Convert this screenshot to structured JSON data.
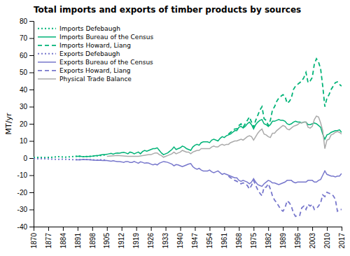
{
  "chart_data": {
    "type": "line",
    "title": "Total imports and exports of timber products by sources",
    "ylabel": "MT/yr",
    "xlim": [
      1870,
      2017
    ],
    "ylim": [
      -40,
      80
    ],
    "yticks": [
      -40,
      -30,
      -20,
      -10,
      0,
      10,
      20,
      30,
      40,
      50,
      60,
      70,
      80
    ],
    "xticks": [
      1870,
      1877,
      1884,
      1891,
      1898,
      1905,
      1912,
      1919,
      1926,
      1933,
      1940,
      1947,
      1954,
      1961,
      1968,
      1975,
      1982,
      1989,
      1996,
      2003,
      2010,
      2017
    ],
    "grid": false,
    "legend": "upper left",
    "series": [
      {
        "name": "Imports Defebaugh",
        "color": "#00b377",
        "line_style": "dotted",
        "x": [
          1870,
          1871,
          1872,
          1873,
          1874,
          1875,
          1876,
          1877,
          1878,
          1879,
          1880,
          1881,
          1882,
          1883,
          1884,
          1885,
          1886,
          1887,
          1888,
          1889,
          1890,
          1891,
          1892,
          1893,
          1894,
          1895,
          1896,
          1897,
          1898,
          1899,
          1900,
          1901,
          1902,
          1903,
          1904,
          1905
        ],
        "values": [
          0.3,
          0.35,
          0.4,
          0.4,
          0.35,
          0.35,
          0.3,
          0.4,
          0.4,
          0.5,
          0.6,
          0.7,
          0.8,
          0.7,
          0.6,
          0.55,
          0.6,
          0.7,
          0.8,
          0.9,
          1.0,
          1.0,
          1.1,
          0.9,
          0.8,
          0.9,
          0.9,
          1.0,
          1.1,
          1.2,
          1.3,
          1.4,
          1.5,
          1.7,
          1.8,
          2.0
        ]
      },
      {
        "name": "Imports Bureau of the Census",
        "color": "#00b377",
        "line_style": "solid",
        "x": [
          1890,
          1891,
          1892,
          1893,
          1894,
          1895,
          1896,
          1897,
          1898,
          1899,
          1900,
          1901,
          1902,
          1903,
          1904,
          1905,
          1906,
          1907,
          1908,
          1909,
          1910,
          1911,
          1912,
          1913,
          1914,
          1915,
          1916,
          1917,
          1918,
          1919,
          1920,
          1921,
          1922,
          1923,
          1924,
          1925,
          1926,
          1927,
          1928,
          1929,
          1930,
          1931,
          1932,
          1933,
          1934,
          1935,
          1936,
          1937,
          1938,
          1939,
          1940,
          1941,
          1942,
          1943,
          1944,
          1945,
          1946,
          1947,
          1948,
          1949,
          1950,
          1951,
          1952,
          1953,
          1954,
          1955,
          1956,
          1957,
          1958,
          1959,
          1960,
          1961,
          1962,
          1963,
          1964,
          1965,
          1966,
          1967,
          1968,
          1969,
          1970,
          1971,
          1972,
          1973,
          1974,
          1975,
          1976,
          1977,
          1978,
          1979,
          1980,
          1981,
          1982,
          1983,
          1984,
          1985,
          1986,
          1987,
          1988,
          1989,
          1990,
          1991,
          1992,
          1993,
          1994,
          1995,
          1996,
          1997,
          1998,
          1999,
          2000,
          2001,
          2002,
          2003,
          2004,
          2005,
          2006,
          2007,
          2008,
          2009,
          2010,
          2011,
          2012,
          2013,
          2014,
          2015,
          2016,
          2017
        ],
        "values": [
          1.0,
          1.0,
          1.1,
          0.9,
          0.8,
          0.9,
          0.9,
          1.0,
          1.1,
          1.3,
          1.4,
          1.5,
          1.8,
          2.0,
          2.0,
          2.2,
          2.5,
          2.7,
          2.3,
          2.8,
          3.0,
          2.9,
          3.2,
          3.4,
          3.0,
          2.5,
          3.5,
          3.2,
          2.5,
          3.0,
          3.5,
          2.5,
          3.8,
          4.5,
          4.0,
          4.5,
          5.0,
          5.5,
          5.5,
          6.0,
          4.5,
          3.0,
          2.0,
          2.5,
          3.0,
          4.0,
          5.0,
          6.5,
          5.0,
          5.5,
          6.0,
          7.0,
          6.5,
          5.5,
          5.0,
          4.5,
          6.5,
          7.5,
          8.0,
          7.5,
          9.0,
          9.5,
          9.5,
          9.5,
          9.0,
          10.5,
          11.0,
          10.5,
          10.0,
          11.5,
          12.5,
          12.0,
          13.0,
          13.5,
          14.0,
          15.0,
          16.0,
          16.0,
          18.0,
          18.5,
          17.5,
          18.5,
          20.0,
          21.0,
          19.5,
          17.0,
          19.5,
          21.0,
          22.0,
          22.5,
          20.0,
          19.5,
          18.5,
          19.5,
          21.5,
          21.5,
          22.0,
          22.5,
          22.0,
          22.0,
          21.5,
          20.0,
          19.5,
          20.0,
          21.0,
          21.5,
          21.0,
          21.0,
          20.5,
          21.0,
          21.0,
          19.5,
          19.5,
          20.0,
          20.5,
          20.0,
          19.0,
          18.0,
          14.0,
          11.0,
          13.5,
          14.0,
          15.0,
          15.5,
          16.0,
          16.0,
          16.5,
          15.0
        ]
      },
      {
        "name": "Imports Howard, Liang",
        "color": "#00b377",
        "line_style": "dashed",
        "x": [
          1963,
          1964,
          1965,
          1966,
          1967,
          1968,
          1969,
          1970,
          1971,
          1972,
          1973,
          1974,
          1975,
          1976,
          1977,
          1978,
          1979,
          1980,
          1981,
          1982,
          1983,
          1984,
          1985,
          1986,
          1987,
          1988,
          1989,
          1990,
          1991,
          1992,
          1993,
          1994,
          1995,
          1996,
          1997,
          1998,
          1999,
          2000,
          2001,
          2002,
          2003,
          2004,
          2005,
          2006,
          2007,
          2008,
          2009,
          2010,
          2011,
          2012,
          2013,
          2014,
          2015,
          2016,
          2017
        ],
        "values": [
          14.0,
          15.0,
          16.0,
          17.0,
          17.0,
          19.0,
          20.0,
          18.0,
          20.0,
          22.0,
          24.0,
          21.0,
          18.0,
          22.0,
          25.0,
          28.0,
          30.0,
          23.0,
          22.0,
          19.0,
          22.0,
          28.0,
          30.0,
          33.0,
          35.0,
          36.0,
          37.0,
          36.0,
          32.0,
          33.0,
          35.0,
          40.0,
          42.0,
          43.0,
          44.0,
          45.0,
          47.0,
          50.0,
          44.0,
          45.0,
          47.0,
          55.0,
          58.0,
          56.0,
          52.0,
          42.0,
          30.0,
          35.0,
          37.0,
          40.0,
          42.0,
          44.0,
          44.5,
          43.0,
          42.0
        ]
      },
      {
        "name": "Exports Defebaugh",
        "color": "#7777cc",
        "line_style": "dotted",
        "x": [
          1870,
          1871,
          1872,
          1873,
          1874,
          1875,
          1876,
          1877,
          1878,
          1879,
          1880,
          1881,
          1882,
          1883,
          1884,
          1885,
          1886,
          1887,
          1888,
          1889,
          1890,
          1891,
          1892,
          1893,
          1894,
          1895,
          1896,
          1897,
          1898,
          1899,
          1900,
          1901,
          1902,
          1903,
          1904,
          1905
        ],
        "values": [
          -0.3,
          -0.35,
          -0.4,
          -0.4,
          -0.35,
          -0.4,
          -0.45,
          -0.5,
          -0.55,
          -0.6,
          -0.7,
          -0.7,
          -0.75,
          -0.7,
          -0.65,
          -0.7,
          -0.75,
          -0.8,
          -0.85,
          -0.9,
          -0.9,
          -0.95,
          -0.9,
          -0.85,
          -0.8,
          -0.85,
          -0.9,
          -0.95,
          -1.0,
          -1.1,
          -1.2,
          -1.1,
          -1.0,
          -1.1,
          -1.15,
          -1.2
        ]
      },
      {
        "name": "Exports Bureau of the Census",
        "color": "#7777cc",
        "line_style": "solid",
        "x": [
          1890,
          1891,
          1892,
          1893,
          1894,
          1895,
          1896,
          1897,
          1898,
          1899,
          1900,
          1901,
          1902,
          1903,
          1904,
          1905,
          1906,
          1907,
          1908,
          1909,
          1910,
          1911,
          1912,
          1913,
          1914,
          1915,
          1916,
          1917,
          1918,
          1919,
          1920,
          1921,
          1922,
          1923,
          1924,
          1925,
          1926,
          1927,
          1928,
          1929,
          1930,
          1931,
          1932,
          1933,
          1934,
          1935,
          1936,
          1937,
          1938,
          1939,
          1940,
          1941,
          1942,
          1943,
          1944,
          1945,
          1946,
          1947,
          1948,
          1949,
          1950,
          1951,
          1952,
          1953,
          1954,
          1955,
          1956,
          1957,
          1958,
          1959,
          1960,
          1961,
          1962,
          1963,
          1964,
          1965,
          1966,
          1967,
          1968,
          1969,
          1970,
          1971,
          1972,
          1973,
          1974,
          1975,
          1976,
          1977,
          1978,
          1979,
          1980,
          1981,
          1982,
          1983,
          1984,
          1985,
          1986,
          1987,
          1988,
          1989,
          1990,
          1991,
          1992,
          1993,
          1994,
          1995,
          1996,
          1997,
          1998,
          1999,
          2000,
          2001,
          2002,
          2003,
          2004,
          2005,
          2006,
          2007,
          2008,
          2009,
          2010,
          2011,
          2012,
          2013,
          2014,
          2015,
          2016,
          2017
        ],
        "values": [
          -1.0,
          -1.0,
          -1.0,
          -0.9,
          -0.8,
          -0.9,
          -0.9,
          -1.0,
          -1.1,
          -1.2,
          -1.3,
          -1.2,
          -1.3,
          -1.4,
          -1.3,
          -1.4,
          -1.6,
          -1.8,
          -1.5,
          -1.8,
          -2.0,
          -2.0,
          -2.2,
          -2.5,
          -2.0,
          -2.0,
          -2.5,
          -2.5,
          -2.0,
          -2.5,
          -3.0,
          -2.2,
          -2.5,
          -3.0,
          -2.8,
          -3.0,
          -3.5,
          -4.0,
          -3.5,
          -4.0,
          -3.0,
          -2.5,
          -2.0,
          -2.2,
          -2.5,
          -3.0,
          -3.5,
          -4.5,
          -3.8,
          -4.0,
          -4.5,
          -5.0,
          -4.5,
          -4.0,
          -3.5,
          -3.2,
          -5.0,
          -6.0,
          -6.5,
          -6.0,
          -7.0,
          -7.5,
          -7.5,
          -7.5,
          -7.0,
          -8.0,
          -8.5,
          -8.0,
          -7.5,
          -8.5,
          -9.5,
          -9.0,
          -9.5,
          -10.0,
          -10.5,
          -11.0,
          -11.5,
          -11.5,
          -13.0,
          -13.5,
          -13.0,
          -13.5,
          -14.0,
          -15.0,
          -14.0,
          -12.0,
          -14.0,
          -15.5,
          -16.0,
          -16.5,
          -15.0,
          -14.0,
          -13.0,
          -13.5,
          -14.5,
          -14.5,
          -15.0,
          -15.5,
          -15.0,
          -14.5,
          -14.0,
          -13.0,
          -13.0,
          -13.0,
          -14.0,
          -14.5,
          -14.0,
          -14.0,
          -14.0,
          -14.0,
          -14.0,
          -13.0,
          -13.0,
          -13.0,
          -14.0,
          -14.0,
          -13.0,
          -12.5,
          -10.0,
          -7.5,
          -9.5,
          -10.0,
          -10.5,
          -10.5,
          -11.0,
          -10.5,
          -10.5,
          -9.0
        ]
      },
      {
        "name": "Exports Howard, Liang",
        "color": "#7777cc",
        "line_style": "dashed",
        "x": [
          1963,
          1964,
          1965,
          1966,
          1967,
          1968,
          1969,
          1970,
          1971,
          1972,
          1973,
          1974,
          1975,
          1976,
          1977,
          1978,
          1979,
          1980,
          1981,
          1982,
          1983,
          1984,
          1985,
          1986,
          1987,
          1988,
          1989,
          1990,
          1991,
          1992,
          1993,
          1994,
          1995,
          1996,
          1997,
          1998,
          1999,
          2000,
          2001,
          2002,
          2003,
          2004,
          2005,
          2006,
          2007,
          2008,
          2009,
          2010,
          2011,
          2012,
          2013,
          2014,
          2015,
          2016,
          2017
        ],
        "values": [
          -10.5,
          -11.5,
          -12.0,
          -13.0,
          -13.5,
          -14.5,
          -15.0,
          -14.5,
          -15.0,
          -16.0,
          -18.0,
          -16.0,
          -13.0,
          -16.0,
          -18.5,
          -20.5,
          -22.0,
          -17.0,
          -17.0,
          -15.0,
          -18.0,
          -22.0,
          -24.5,
          -26.0,
          -28.0,
          -30.0,
          -31.0,
          -29.0,
          -25.0,
          -26.0,
          -28.0,
          -32.0,
          -34.0,
          -33.5,
          -33.5,
          -29.0,
          -28.0,
          -30.0,
          -27.0,
          -28.0,
          -27.0,
          -30.0,
          -29.5,
          -28.0,
          -26.0,
          -21.5,
          -22.5,
          -20.0,
          -20.5,
          -21.0,
          -22.0,
          -24.0,
          -31.0,
          -30.0,
          -30.0
        ]
      },
      {
        "name": "Physical Trade Balance",
        "color": "#aaaaaa",
        "line_style": "solid",
        "x": [
          1905,
          1910,
          1915,
          1920,
          1925,
          1926,
          1927,
          1928,
          1929,
          1930,
          1931,
          1932,
          1933,
          1934,
          1935,
          1936,
          1937,
          1938,
          1939,
          1940,
          1941,
          1942,
          1943,
          1944,
          1945,
          1946,
          1947,
          1948,
          1949,
          1950,
          1951,
          1952,
          1953,
          1954,
          1955,
          1956,
          1957,
          1958,
          1959,
          1960,
          1961,
          1962,
          1963,
          1964,
          1965,
          1966,
          1967,
          1968,
          1969,
          1970,
          1971,
          1972,
          1973,
          1974,
          1975,
          1976,
          1977,
          1978,
          1979,
          1980,
          1981,
          1982,
          1983,
          1984,
          1985,
          1986,
          1987,
          1988,
          1989,
          1990,
          1991,
          1992,
          1993,
          1994,
          1995,
          1996,
          1997,
          1998,
          1999,
          2000,
          2001,
          2002,
          2003,
          2004,
          2005,
          2006,
          2007,
          2008,
          2009,
          2010,
          2011,
          2012,
          2013,
          2014,
          2015,
          2016,
          2017
        ],
        "values": [
          1.0,
          1.5,
          1.0,
          1.0,
          2.0,
          2.0,
          2.5,
          3.0,
          3.0,
          2.0,
          1.5,
          0.5,
          1.0,
          1.5,
          2.0,
          2.5,
          3.5,
          2.5,
          3.0,
          3.5,
          4.5,
          4.0,
          3.5,
          3.5,
          2.5,
          3.5,
          4.0,
          4.5,
          4.5,
          5.5,
          5.5,
          5.5,
          5.5,
          5.5,
          6.5,
          7.0,
          6.5,
          6.5,
          7.5,
          8.0,
          7.5,
          8.0,
          8.0,
          9.0,
          9.5,
          10.0,
          10.0,
          10.5,
          11.0,
          10.5,
          11.5,
          12.5,
          13.0,
          12.5,
          10.5,
          12.5,
          14.5,
          16.0,
          17.0,
          14.0,
          13.5,
          12.5,
          12.0,
          14.5,
          14.5,
          16.0,
          17.0,
          18.0,
          19.0,
          18.5,
          17.0,
          16.5,
          17.5,
          18.5,
          19.0,
          19.5,
          20.5,
          20.5,
          21.0,
          21.0,
          18.0,
          17.5,
          18.5,
          22.5,
          24.5,
          24.0,
          20.5,
          16.0,
          5.5,
          10.5,
          11.0,
          13.5,
          14.0,
          15.0,
          15.5,
          15.0,
          14.0
        ]
      }
    ]
  }
}
